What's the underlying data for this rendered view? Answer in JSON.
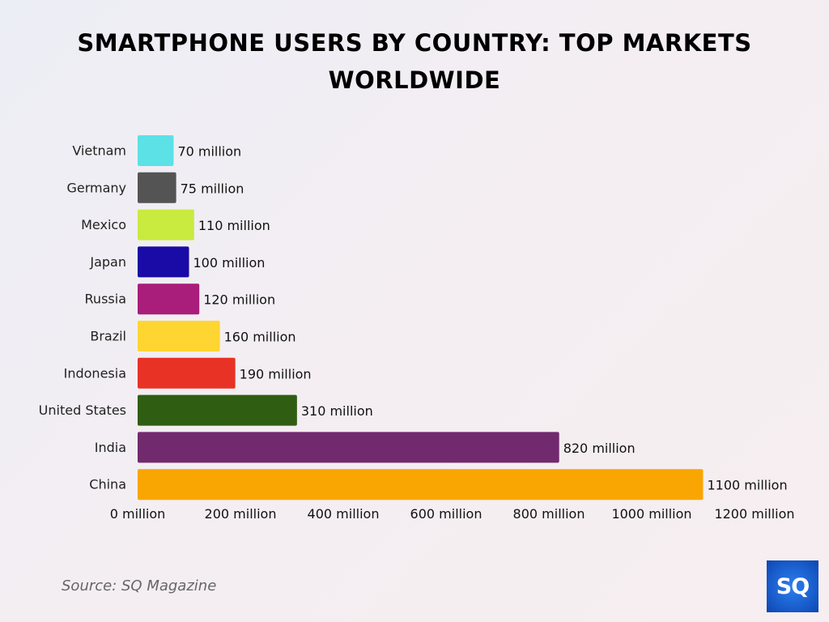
{
  "chart_data": {
    "type": "bar",
    "orientation": "horizontal",
    "title": "SMARTPHONE USERS BY COUNTRY: TOP MARKETS WORLDWIDE",
    "categories": [
      "Vietnam",
      "Germany",
      "Mexico",
      "Japan",
      "Russia",
      "Brazil",
      "Indonesia",
      "United States",
      "India",
      "China"
    ],
    "values": [
      70,
      75,
      110,
      100,
      120,
      160,
      190,
      310,
      820,
      1100
    ],
    "data_labels": [
      "70 million",
      "75 million",
      "110 million",
      "100 million",
      "120 million",
      "160 million",
      "190 million",
      "310 million",
      "820 million",
      "1100 million"
    ],
    "colors": [
      "#5ce1e6",
      "#545454",
      "#c9ea3f",
      "#1a0aa6",
      "#a91d7b",
      "#ffd531",
      "#e83226",
      "#2f5e13",
      "#722a6e",
      "#f9a603"
    ],
    "xlim": [
      0,
      1200
    ],
    "xticks": [
      0,
      200,
      400,
      600,
      800,
      1000,
      1200
    ],
    "xtick_labels": [
      "0 million",
      "200 million",
      "400 million",
      "600 million",
      "800 million",
      "1000 million",
      "1200 million"
    ],
    "xlabel": "",
    "ylabel": "",
    "grid": false,
    "legend": "none"
  },
  "footer": {
    "source": "Source: SQ Magazine",
    "logo_text": "SQ"
  }
}
